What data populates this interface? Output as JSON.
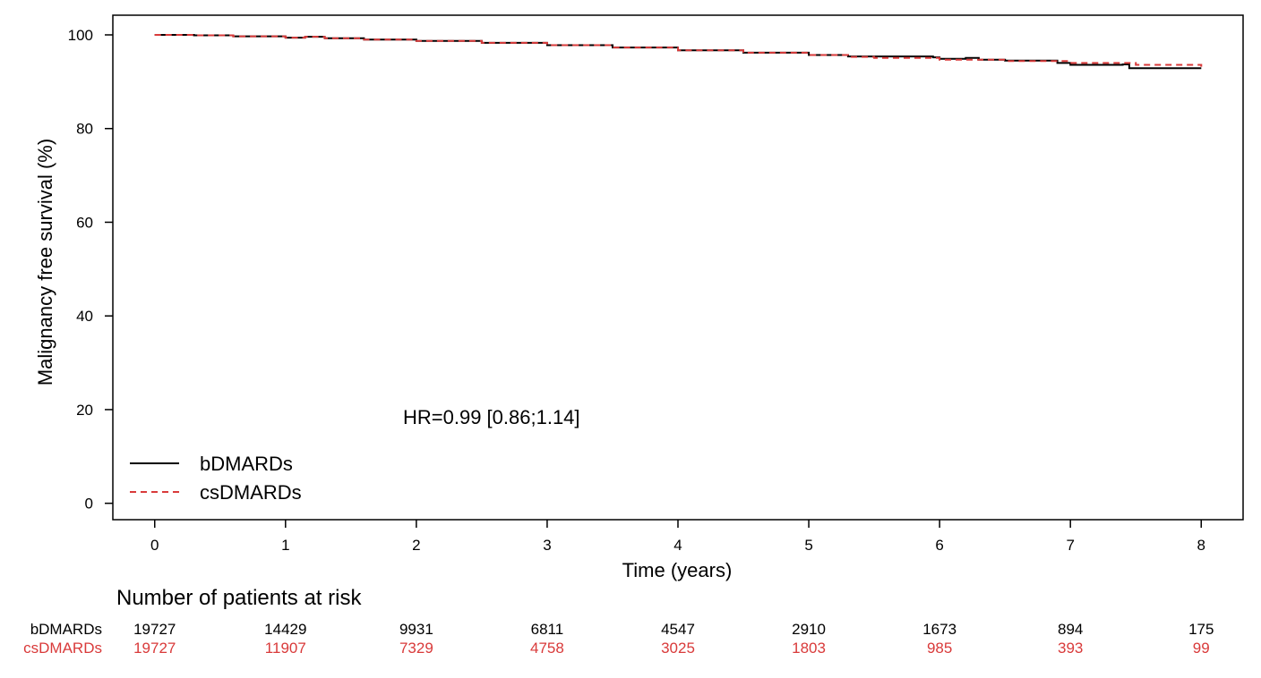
{
  "chart_data": {
    "type": "line",
    "xlabel": "Time (years)",
    "ylabel": "Malignancy free survival (%)",
    "xlim": [
      -0.32,
      8.32
    ],
    "ylim": [
      -3.5,
      104.2
    ],
    "x_ticks": [
      0,
      1,
      2,
      3,
      4,
      5,
      6,
      7,
      8
    ],
    "y_ticks": [
      0,
      20,
      40,
      60,
      80,
      100
    ],
    "grid": false,
    "legend_position": "bottom-left",
    "annotation": "HR=0.99 [0.86;1.14]",
    "colors": {
      "bDMARDs": "#000000",
      "csDMARDs": "#d93a3a"
    },
    "series": [
      {
        "name": "bDMARDs",
        "style": "solid",
        "x": [
          0,
          0.3,
          0.6,
          1.0,
          1.15,
          1.3,
          1.6,
          2.0,
          2.5,
          3.0,
          3.5,
          4.0,
          4.5,
          5.0,
          5.3,
          5.5,
          5.95,
          6.0,
          6.2,
          6.3,
          6.5,
          6.9,
          7.0,
          7.4,
          7.45,
          8.0
        ],
        "y": [
          100,
          99.9,
          99.7,
          99.4,
          99.6,
          99.3,
          99.0,
          98.7,
          98.3,
          97.8,
          97.3,
          96.7,
          96.2,
          95.7,
          95.4,
          95.4,
          95.2,
          94.9,
          95.1,
          94.7,
          94.5,
          94.0,
          93.6,
          93.7,
          92.9,
          92.9
        ]
      },
      {
        "name": "csDMARDs",
        "style": "dashed",
        "x": [
          0,
          0.3,
          0.6,
          1.0,
          1.15,
          1.3,
          1.6,
          2.0,
          2.5,
          3.0,
          3.5,
          4.0,
          4.5,
          5.0,
          5.3,
          5.5,
          6.0,
          6.5,
          7.0,
          7.5,
          8.0
        ],
        "y": [
          100,
          99.9,
          99.7,
          99.4,
          99.6,
          99.3,
          99.0,
          98.7,
          98.3,
          97.8,
          97.3,
          96.7,
          96.2,
          95.7,
          95.3,
          95.1,
          94.7,
          94.4,
          94.0,
          93.6,
          93.2
        ]
      }
    ],
    "risk_table": {
      "title": "Number of patients at risk",
      "times": [
        0,
        1,
        2,
        3,
        4,
        5,
        6,
        7,
        8
      ],
      "rows": [
        {
          "label": "bDMARDs",
          "color": "#000000",
          "values": [
            "19727",
            "14429",
            "9931",
            "6811",
            "4547",
            "2910",
            "1673",
            "894",
            "175"
          ]
        },
        {
          "label": "csDMARDs",
          "color": "#d93a3a",
          "values": [
            "19727",
            "11907",
            "7329",
            "4758",
            "3025",
            "1803",
            "985",
            "393",
            "99"
          ]
        }
      ]
    }
  }
}
